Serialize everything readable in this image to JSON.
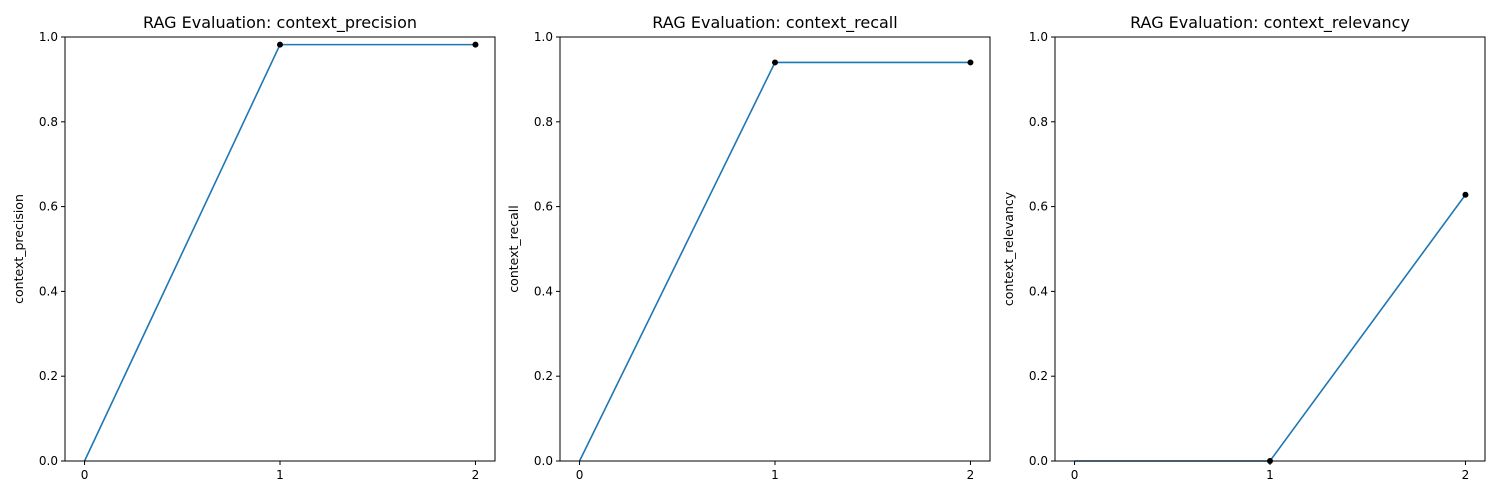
{
  "chart_data": [
    {
      "type": "line",
      "title": "RAG Evaluation: context_precision",
      "xlabel": "",
      "ylabel": "context_precision",
      "x": [
        0,
        1,
        2
      ],
      "values": [
        0.0,
        0.982,
        0.982
      ],
      "xticks": [
        "0",
        "1",
        "2"
      ],
      "yticks": [
        "0.0",
        "0.2",
        "0.4",
        "0.6",
        "0.8",
        "1.0"
      ],
      "ylim": [
        0,
        1
      ],
      "grid": false,
      "line_color": "#1f77b4",
      "marker_color": "#000000",
      "marker_indices": [
        1,
        2
      ]
    },
    {
      "type": "line",
      "title": "RAG Evaluation: context_recall",
      "xlabel": "",
      "ylabel": "context_recall",
      "x": [
        0,
        1,
        2
      ],
      "values": [
        0.0,
        0.94,
        0.94
      ],
      "xticks": [
        "0",
        "1",
        "2"
      ],
      "yticks": [
        "0.0",
        "0.2",
        "0.4",
        "0.6",
        "0.8",
        "1.0"
      ],
      "ylim": [
        0,
        1
      ],
      "grid": false,
      "line_color": "#1f77b4",
      "marker_color": "#000000",
      "marker_indices": [
        1,
        2
      ]
    },
    {
      "type": "line",
      "title": "RAG Evaluation: context_relevancy",
      "xlabel": "",
      "ylabel": "context_relevancy",
      "x": [
        0,
        1,
        2
      ],
      "values": [
        0.0,
        0.0,
        0.628
      ],
      "xticks": [
        "0",
        "1",
        "2"
      ],
      "yticks": [
        "0.0",
        "0.2",
        "0.4",
        "0.6",
        "0.8",
        "1.0"
      ],
      "ylim": [
        0,
        1
      ],
      "grid": false,
      "line_color": "#1f77b4",
      "marker_color": "#000000",
      "marker_indices": [
        1,
        2
      ]
    }
  ]
}
